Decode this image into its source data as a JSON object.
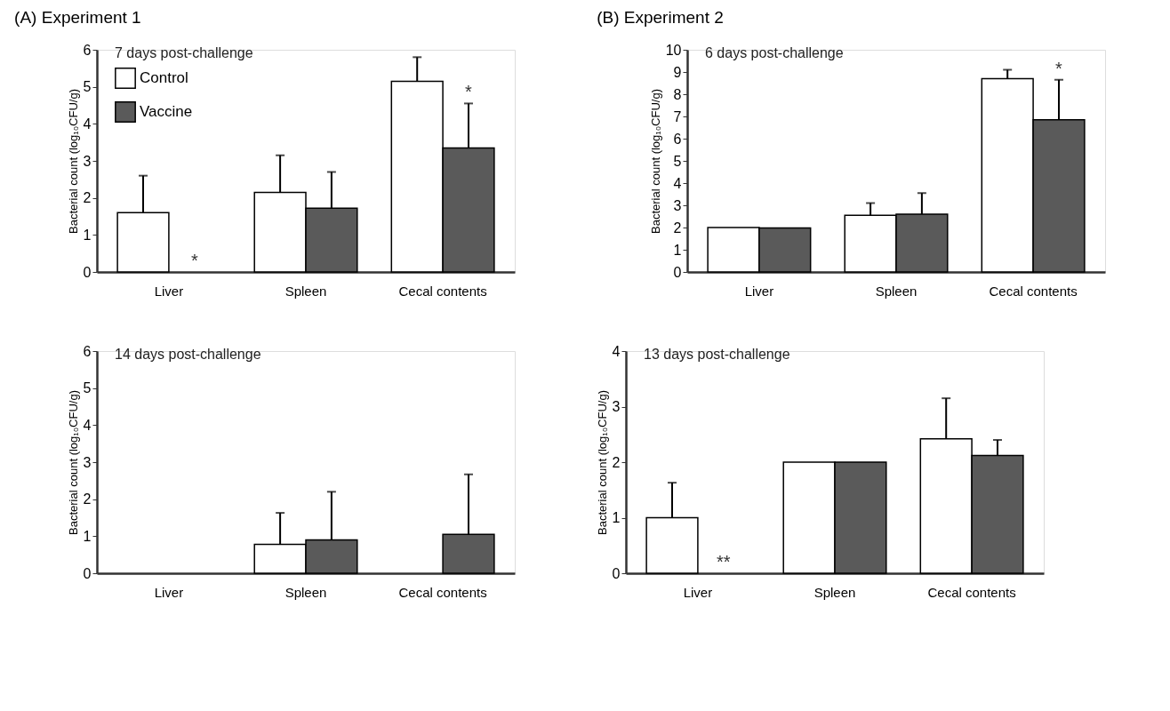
{
  "chart_data": [
    {
      "type": "bar",
      "title": "(A) Experiment 1",
      "subtitle": "7 days post-challenge",
      "ylabel": "Bacterial count (log₁₀CFU/g)",
      "categories": [
        "Liver",
        "Spleen",
        "Cecal contents"
      ],
      "ylim": [
        0,
        6
      ],
      "yticks": [
        0,
        1,
        2,
        3,
        4,
        5,
        6
      ],
      "legend": "top left",
      "grid": false,
      "series": [
        {
          "name": "Control",
          "color": "#ffffff",
          "values": [
            1.6,
            2.15,
            5.15
          ],
          "errors": [
            1.0,
            1.0,
            0.65
          ]
        },
        {
          "name": "Vaccine",
          "color": "#5a5a5a",
          "values": [
            0,
            1.72,
            3.35
          ],
          "errors": [
            null,
            0.98,
            1.2
          ]
        }
      ],
      "annotations": [
        {
          "text": "*",
          "x": "Liver",
          "y": 0
        },
        {
          "text": "*",
          "x": "Cecal contents",
          "y": 4.57
        }
      ]
    },
    {
      "type": "bar",
      "title": "(B) Experiment 2",
      "subtitle": "6 days post-challenge",
      "ylabel": "Bacterial count (log₁₀CFU/g)",
      "categories": [
        "Liver",
        "Spleen",
        "Cecal contents"
      ],
      "ylim": [
        0,
        10
      ],
      "yticks": [
        0,
        1,
        2,
        3,
        4,
        5,
        6,
        7,
        8,
        9,
        10
      ],
      "legend": false,
      "grid": false,
      "series": [
        {
          "color": "#ffffff",
          "values": [
            2.0,
            2.55,
            8.7
          ],
          "errors": [
            null,
            0.55,
            0.4
          ]
        },
        {
          "color": "#5a5a5a",
          "values": [
            1.98,
            2.6,
            6.85
          ],
          "errors": [
            null,
            0.95,
            1.8
          ]
        }
      ],
      "annotations": [
        {
          "text": "*",
          "x": "Cecal contents",
          "y": 8.65
        }
      ]
    },
    {
      "type": "bar",
      "subtitle": "14 days post-challenge",
      "ylabel": "Bacterial count (log₁₀CFU/g)",
      "categories": [
        "Liver",
        "Spleen",
        "Cecal contents"
      ],
      "ylim": [
        0,
        6
      ],
      "yticks": [
        0,
        1,
        2,
        3,
        4,
        5,
        6
      ],
      "legend": false,
      "grid": false,
      "series": [
        {
          "color": "#ffffff",
          "values": [
            0,
            0.78,
            0
          ],
          "errors": [
            null,
            0.85,
            null
          ]
        },
        {
          "color": "#5a5a5a",
          "values": [
            0,
            0.9,
            1.05
          ],
          "errors": [
            null,
            1.3,
            1.62
          ]
        }
      ]
    },
    {
      "type": "bar",
      "subtitle": "13 days post-challenge",
      "ylabel": "Bacterial count (log₁₀CFU/g)",
      "categories": [
        "Liver",
        "Spleen",
        "Cecal contents"
      ],
      "ylim": [
        0,
        4
      ],
      "yticks": [
        0,
        1,
        2,
        3,
        4
      ],
      "legend": false,
      "grid": false,
      "series": [
        {
          "color": "#ffffff",
          "values": [
            1.0,
            2.0,
            2.42
          ],
          "errors": [
            0.63,
            null,
            0.73
          ]
        },
        {
          "color": "#5a5a5a",
          "values": [
            0,
            2.0,
            2.12
          ],
          "errors": [
            null,
            null,
            0.28
          ]
        }
      ],
      "annotations": [
        {
          "text": "**",
          "x": "Liver",
          "y": 0
        }
      ]
    }
  ]
}
